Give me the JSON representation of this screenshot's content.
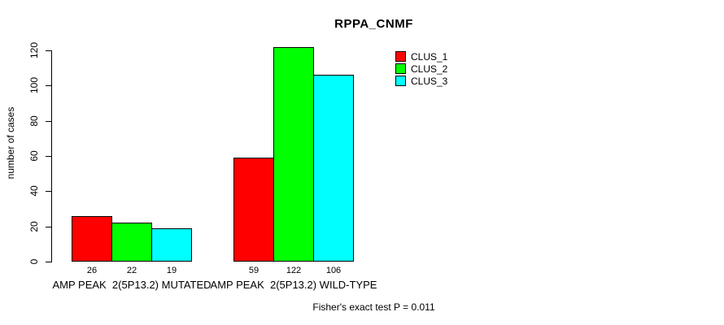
{
  "title": "RPPA_CNMF",
  "chart_data": {
    "type": "bar",
    "title": "RPPA_CNMF",
    "xlabel": "",
    "ylabel": "number of cases",
    "ylim": [
      0,
      120
    ],
    "yticks": [
      0,
      20,
      40,
      60,
      80,
      100,
      120
    ],
    "grid": false,
    "legend_position": "top-right",
    "categories": [
      "AMP PEAK  2(5P13.2) MUTATED",
      "AMP PEAK  2(5P13.2) WILD-TYPE"
    ],
    "series": [
      {
        "name": "CLUS_1",
        "color": "#ff0000",
        "values": [
          26,
          59
        ]
      },
      {
        "name": "CLUS_2",
        "color": "#00ff00",
        "values": [
          22,
          122
        ]
      },
      {
        "name": "CLUS_3",
        "color": "#00ffff",
        "values": [
          19,
          106
        ]
      }
    ],
    "bar_value_labels": [
      [
        26,
        22,
        19
      ],
      [
        59,
        122,
        106
      ]
    ],
    "annotation": "Fisher's exact test P = 0.011"
  },
  "colors": {
    "axis": "#000000",
    "text": "#000000",
    "background": "#ffffff"
  }
}
